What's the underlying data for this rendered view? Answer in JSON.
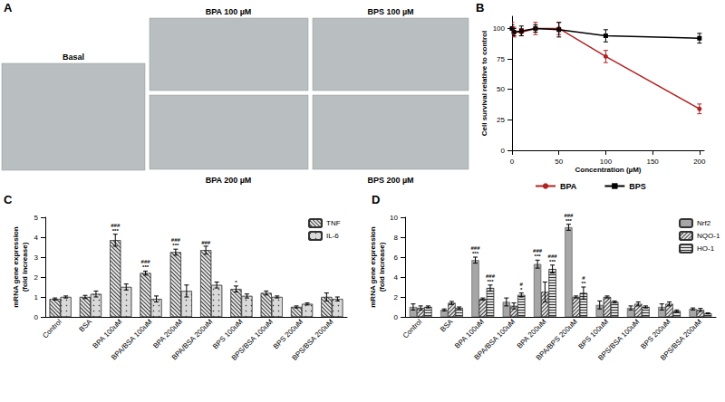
{
  "chart_data": [
    {
      "type": "images",
      "title": "A",
      "labels": [
        "Basal",
        "BPA 100 µM",
        "BPS 100 µM",
        "BPA 200 µM",
        "BPS 200 µM"
      ]
    },
    {
      "type": "line",
      "title": "B",
      "x_label": "Concentration (µM)",
      "y_label": "Cell survival relative to control",
      "x": [
        0,
        2,
        10,
        25,
        50,
        100,
        200
      ],
      "series": [
        {
          "name": "BPA",
          "color": "#b22222",
          "marker": "circle",
          "line_style": "solid",
          "values": [
            100,
            97,
            97,
            100,
            100,
            77,
            34
          ],
          "errors": [
            5,
            4,
            3,
            5,
            5,
            5,
            4
          ]
        },
        {
          "name": "BPS",
          "color": "#000000",
          "marker": "square",
          "line_style": "solid",
          "values": [
            100,
            97,
            98,
            100,
            99,
            94,
            92
          ],
          "errors": [
            3,
            3,
            4,
            3,
            6,
            5,
            4
          ]
        }
      ],
      "xlim": [
        0,
        205
      ],
      "xticks": [
        0,
        50,
        100,
        150,
        200
      ],
      "ylim": [
        0,
        110
      ],
      "yticks": [
        0,
        25,
        50,
        75,
        100
      ],
      "grid": false,
      "legend": "bottom"
    },
    {
      "type": "bar",
      "title": "C",
      "y_label": "mRNA gene expression\n(fold increase)",
      "categories": [
        "Control",
        "BSA",
        "BPA 100uM",
        "BPA/BSA 100uM",
        "BPA 200uM",
        "BPA/BSA 200uM",
        "BPS 100uM",
        "BPS/BSA 100uM",
        "BPS 200uM",
        "BPS/BSA 200uM"
      ],
      "series": [
        {
          "name": "TNF",
          "color": "#e6e6e6",
          "values": [
            0.9,
            1.0,
            3.85,
            2.2,
            3.25,
            3.35,
            1.4,
            1.2,
            0.5,
            1.0
          ],
          "errors": [
            0.05,
            0.08,
            0.3,
            0.1,
            0.15,
            0.2,
            0.15,
            0.1,
            0.05,
            0.2
          ],
          "annotations": [
            null,
            null,
            [
              "###",
              "***"
            ],
            [
              "###",
              "***"
            ],
            [
              "###",
              "***"
            ],
            [
              "###"
            ],
            [
              "*"
            ],
            null,
            null,
            null
          ]
        },
        {
          "name": "IL-6",
          "color": "#d9d9d9",
          "values": [
            1.0,
            1.15,
            1.5,
            0.9,
            1.3,
            1.6,
            1.05,
            1.0,
            0.65,
            0.9
          ],
          "errors": [
            0.05,
            0.15,
            0.15,
            0.15,
            0.3,
            0.15,
            0.1,
            0.05,
            0.05,
            0.1
          ],
          "annotations": [
            null,
            null,
            null,
            null,
            null,
            null,
            null,
            null,
            null,
            null
          ]
        }
      ],
      "ylim": [
        0,
        5
      ],
      "yticks": [
        0,
        1,
        2,
        3,
        4,
        5
      ],
      "grid": false,
      "legend": "top right"
    },
    {
      "type": "bar",
      "title": "D",
      "y_label": "mRNA gene expression\n(fold increase)",
      "categories": [
        "Control",
        "BSA",
        "BPA 100uM",
        "BPA/BSA 100uM",
        "BPA 200uM",
        "BPA/BPS 200uM",
        "BPS 100uM",
        "BPS/BSA 100uM",
        "BPS 200uM",
        "BPS/BSA 200uM"
      ],
      "series": [
        {
          "name": "Nrf2",
          "color": "#a6a6a6",
          "values": [
            1.0,
            0.7,
            5.7,
            1.5,
            5.3,
            9.0,
            1.2,
            0.9,
            1.0,
            0.8
          ],
          "errors": [
            0.3,
            0.1,
            0.3,
            0.4,
            0.4,
            0.3,
            0.4,
            0.2,
            0.3,
            0.1
          ],
          "annotations": [
            null,
            null,
            [
              "###",
              "***"
            ],
            null,
            [
              "###",
              "***"
            ],
            [
              "###",
              "***"
            ],
            null,
            null,
            null,
            null
          ]
        },
        {
          "name": "NQO-1",
          "color": "#e6e6e6",
          "values": [
            0.9,
            1.4,
            1.8,
            1.1,
            2.5,
            2.0,
            2.0,
            1.3,
            1.3,
            0.7
          ],
          "errors": [
            0.2,
            0.15,
            0.1,
            0.3,
            1.0,
            0.1,
            0.1,
            0.2,
            0.2,
            0.15
          ],
          "annotations": [
            null,
            null,
            null,
            null,
            null,
            null,
            null,
            null,
            null,
            null
          ]
        },
        {
          "name": "HO-1",
          "color": "#e0e0e0",
          "values": [
            1.0,
            0.9,
            2.9,
            2.2,
            4.8,
            2.4,
            1.5,
            1.0,
            0.6,
            0.35
          ],
          "errors": [
            0.1,
            0.1,
            0.3,
            0.2,
            0.4,
            0.6,
            0.1,
            0.1,
            0.1,
            0.05
          ],
          "annotations": [
            null,
            null,
            [
              "###",
              "***"
            ],
            [
              "#",
              "*"
            ],
            [
              "###",
              "***"
            ],
            [
              "#",
              "**"
            ],
            null,
            null,
            null,
            null
          ]
        }
      ],
      "ylim": [
        0,
        10
      ],
      "yticks": [
        0,
        2,
        4,
        6,
        8,
        10
      ],
      "grid": false,
      "legend": "top right"
    }
  ]
}
